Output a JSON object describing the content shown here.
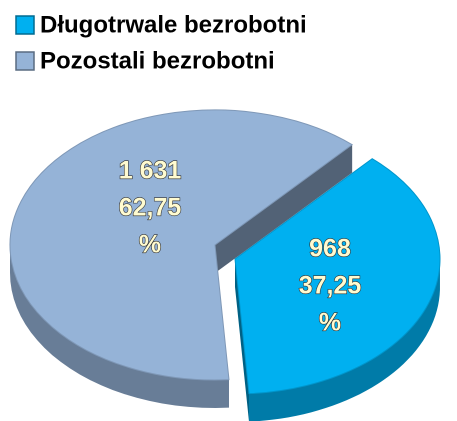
{
  "chart_data": {
    "type": "pie3d",
    "categories": [
      "Długotrwale bezrobotni",
      "Pozostali bezrobotni"
    ],
    "values": [
      968,
      1631
    ],
    "value_labels": [
      "968",
      "1 631"
    ],
    "percents": [
      37.25,
      62.75
    ],
    "percent_labels": [
      "37,25",
      "62,75"
    ],
    "percent_unit": "%",
    "colors": [
      "#00b0f0",
      "#95b3d7"
    ],
    "legend": "top-left"
  }
}
